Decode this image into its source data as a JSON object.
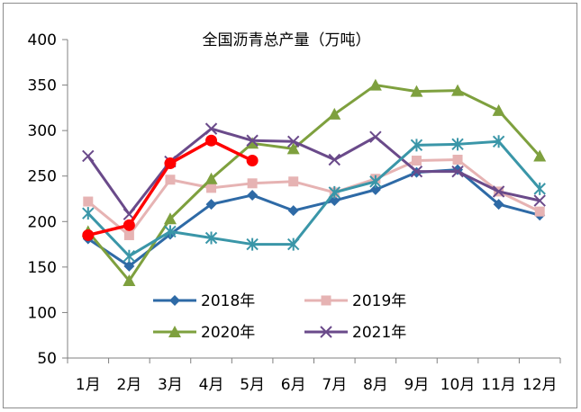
{
  "chart_data": {
    "type": "line",
    "title": "全国沥青总产量（万吨）",
    "xlabel": "",
    "ylabel": "",
    "categories": [
      "1月",
      "2月",
      "3月",
      "4月",
      "5月",
      "6月",
      "7月",
      "8月",
      "9月",
      "10月",
      "11月",
      "12月"
    ],
    "ylim": [
      50,
      400
    ],
    "yticks": [
      50,
      100,
      150,
      200,
      250,
      300,
      350,
      400
    ],
    "grid": false,
    "legend_placement": "bottom-center",
    "series": [
      {
        "name": "2018年",
        "color": "#2e6aa6",
        "marker": "diamond",
        "values": [
          181,
          151,
          186,
          219,
          229,
          212,
          223,
          235,
          254,
          257,
          219,
          207
        ]
      },
      {
        "name": "2019年",
        "color": "#e6b3b3",
        "marker": "square",
        "values": [
          222,
          185,
          246,
          237,
          242,
          244,
          232,
          247,
          267,
          268,
          233,
          211
        ]
      },
      {
        "name": "2020年",
        "color": "#7ea03e",
        "marker": "triangle",
        "values": [
          189,
          135,
          203,
          247,
          286,
          280,
          318,
          350,
          343,
          344,
          322,
          272
        ]
      },
      {
        "name": "2021年",
        "color": "#6a4a8a",
        "marker": "x",
        "values": [
          272,
          208,
          266,
          302,
          289,
          288,
          268,
          293,
          255,
          255,
          233,
          223
        ]
      },
      {
        "name": "",
        "color": "#3a96a8",
        "marker": "star",
        "values": [
          209,
          162,
          189,
          182,
          175,
          175,
          232,
          244,
          284,
          285,
          288,
          236
        ]
      },
      {
        "name": "",
        "color": "#ff0000",
        "marker": "circle",
        "values": [
          185,
          196,
          264,
          289,
          267,
          null,
          null,
          null,
          null,
          null,
          null,
          null
        ]
      }
    ]
  }
}
